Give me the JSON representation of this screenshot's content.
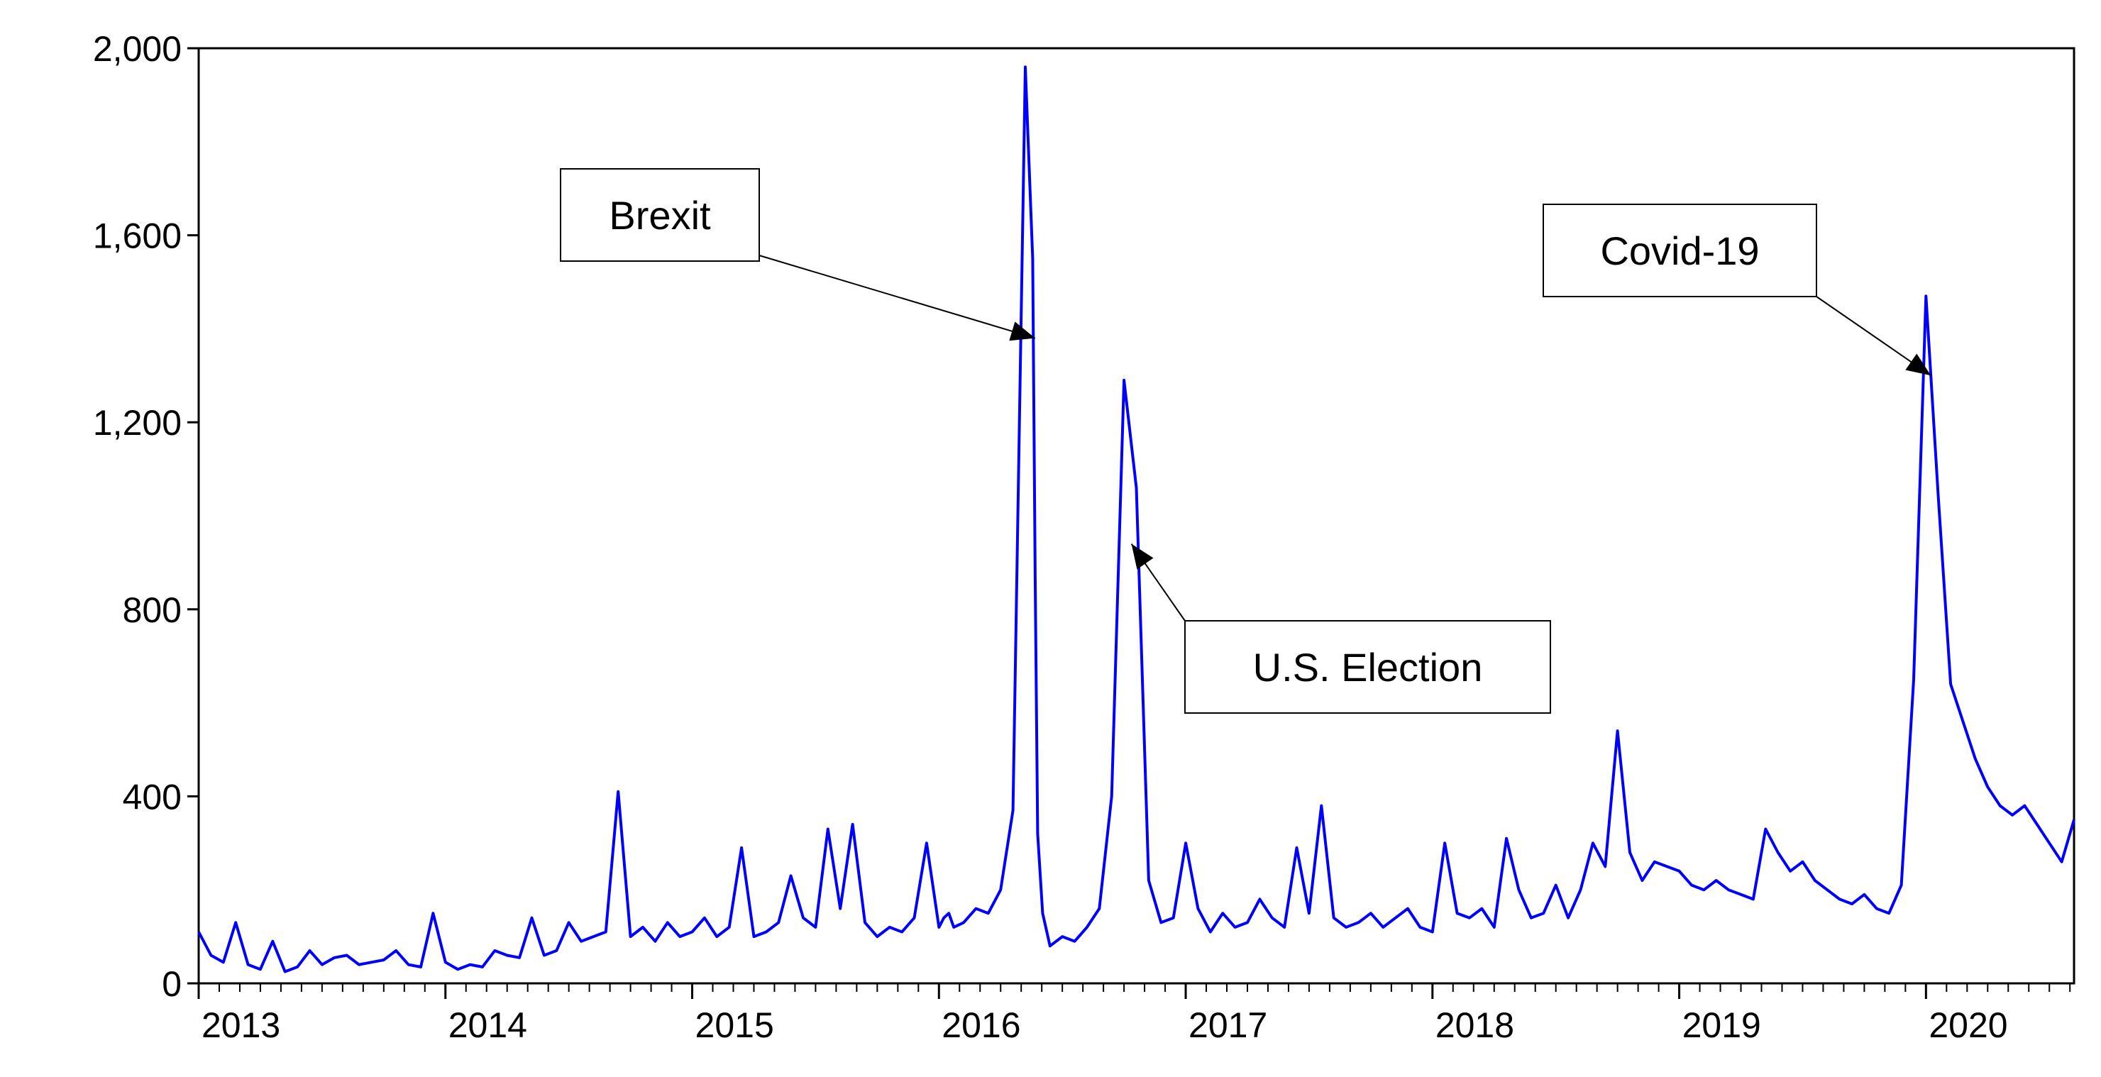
{
  "chart_data": {
    "type": "line",
    "title": "",
    "xlabel": "",
    "ylabel": "",
    "xlim": [
      2013,
      2020.6
    ],
    "ylim": [
      0,
      2000
    ],
    "grid": false,
    "legend": "none",
    "line_color": "#0000ff",
    "y_ticks": [
      {
        "value": 0,
        "label": "0"
      },
      {
        "value": 400,
        "label": "400"
      },
      {
        "value": 800,
        "label": "800"
      },
      {
        "value": 1200,
        "label": "1,200"
      },
      {
        "value": 1600,
        "label": "1,600"
      },
      {
        "value": 2000,
        "label": "2,000"
      }
    ],
    "x_ticks": [
      {
        "value": 2013,
        "label": "2013"
      },
      {
        "value": 2014,
        "label": "2014"
      },
      {
        "value": 2015,
        "label": "2015"
      },
      {
        "value": 2016,
        "label": "2016"
      },
      {
        "value": 2017,
        "label": "2017"
      },
      {
        "value": 2018,
        "label": "2018"
      },
      {
        "value": 2019,
        "label": "2019"
      },
      {
        "value": 2020,
        "label": "2020"
      }
    ],
    "series": [
      {
        "x": [
          2013.0,
          2013.05,
          2013.1,
          2013.15,
          2013.2,
          2013.25,
          2013.3,
          2013.35,
          2013.4,
          2013.45,
          2013.5,
          2013.55,
          2013.6,
          2013.65,
          2013.7,
          2013.75,
          2013.8,
          2013.85,
          2013.9,
          2013.95,
          2014.0,
          2014.05,
          2014.1,
          2014.15,
          2014.2,
          2014.25,
          2014.3,
          2014.35,
          2014.4,
          2014.45,
          2014.5,
          2014.55,
          2014.6,
          2014.65,
          2014.7,
          2014.75,
          2014.8,
          2014.85,
          2014.9,
          2014.95,
          2015.0,
          2015.05,
          2015.1,
          2015.15,
          2015.2,
          2015.25,
          2015.3,
          2015.35,
          2015.4,
          2015.45,
          2015.5,
          2015.55,
          2015.6,
          2015.65,
          2015.7,
          2015.75,
          2015.8,
          2015.85,
          2015.9,
          2015.95,
          2016.0,
          2016.02,
          2016.04,
          2016.06,
          2016.1,
          2016.15,
          2016.2,
          2016.25,
          2016.3,
          2016.35,
          2016.38,
          2016.39,
          2016.4,
          2016.42,
          2016.45,
          2016.5,
          2016.55,
          2016.6,
          2016.65,
          2016.7,
          2016.75,
          2016.8,
          2016.85,
          2016.9,
          2016.95,
          2017.0,
          2017.05,
          2017.1,
          2017.15,
          2017.2,
          2017.25,
          2017.3,
          2017.35,
          2017.4,
          2017.45,
          2017.5,
          2017.55,
          2017.6,
          2017.65,
          2017.7,
          2017.75,
          2017.8,
          2017.85,
          2017.9,
          2017.95,
          2018.0,
          2018.05,
          2018.1,
          2018.15,
          2018.2,
          2018.25,
          2018.3,
          2018.35,
          2018.4,
          2018.45,
          2018.5,
          2018.55,
          2018.6,
          2018.65,
          2018.7,
          2018.75,
          2018.8,
          2018.85,
          2018.9,
          2018.95,
          2019.0,
          2019.05,
          2019.1,
          2019.15,
          2019.2,
          2019.25,
          2019.3,
          2019.35,
          2019.4,
          2019.45,
          2019.5,
          2019.55,
          2019.6,
          2019.65,
          2019.7,
          2019.75,
          2019.8,
          2019.85,
          2019.9,
          2019.95,
          2020.0,
          2020.05,
          2020.1,
          2020.15,
          2020.2,
          2020.25,
          2020.3,
          2020.35,
          2020.4,
          2020.45,
          2020.5,
          2020.55,
          2020.6
        ],
        "y": [
          110,
          60,
          45,
          130,
          40,
          30,
          90,
          25,
          35,
          70,
          40,
          55,
          60,
          40,
          45,
          50,
          70,
          40,
          35,
          150,
          45,
          30,
          40,
          35,
          70,
          60,
          55,
          140,
          60,
          70,
          130,
          90,
          100,
          110,
          410,
          100,
          120,
          90,
          130,
          100,
          110,
          140,
          100,
          120,
          290,
          100,
          110,
          130,
          230,
          140,
          120,
          330,
          160,
          340,
          130,
          100,
          120,
          110,
          140,
          300,
          120,
          140,
          150,
          120,
          130,
          160,
          150,
          200,
          370,
          1960,
          1550,
          870,
          320,
          150,
          80,
          100,
          90,
          120,
          160,
          400,
          1290,
          1060,
          220,
          130,
          140,
          300,
          160,
          110,
          150,
          120,
          130,
          180,
          140,
          120,
          290,
          150,
          380,
          140,
          120,
          130,
          150,
          120,
          140,
          160,
          120,
          110,
          300,
          150,
          140,
          160,
          120,
          310,
          200,
          140,
          150,
          210,
          140,
          200,
          300,
          250,
          540,
          280,
          220,
          260,
          250,
          240,
          210,
          200,
          220,
          200,
          190,
          180,
          330,
          280,
          240,
          260,
          220,
          200,
          180,
          170,
          190,
          160,
          150,
          210,
          650,
          1470,
          1040,
          640,
          560,
          480,
          420,
          380,
          360,
          380,
          340,
          300,
          260,
          350
        ]
      }
    ],
    "annotations": [
      {
        "text": "Brexit",
        "x": 2016.39,
        "y": 1380
      },
      {
        "text": "U.S. Election",
        "x": 2016.78,
        "y": 940
      },
      {
        "text": "Covid-19",
        "x": 2020.02,
        "y": 1300
      }
    ]
  }
}
